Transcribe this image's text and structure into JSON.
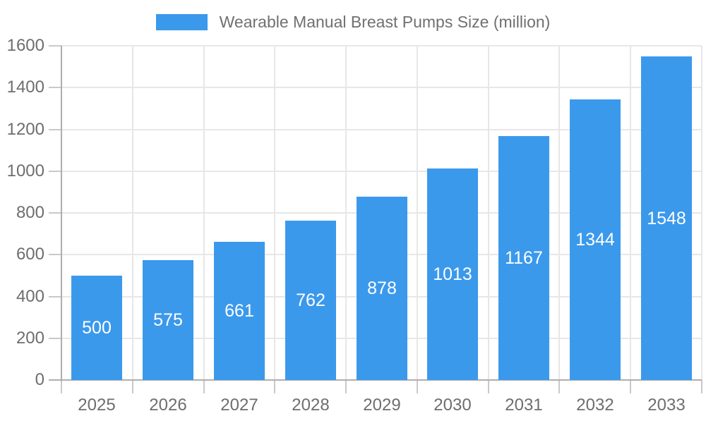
{
  "legend": {
    "label": "Wearable Manual Breast Pumps Size (million)"
  },
  "colors": {
    "bar": "#3B99EC",
    "grid": "#e7e7e7",
    "axis": "#aeaeae",
    "tick": "#c9c9c9",
    "axis_label": "#6e6e6e",
    "value_label": "#ffffff",
    "background": "#ffffff"
  },
  "chart_data": {
    "type": "bar",
    "title": "Wearable Manual Breast Pumps Size (million)",
    "categories": [
      "2025",
      "2026",
      "2027",
      "2028",
      "2029",
      "2030",
      "2031",
      "2032",
      "2033"
    ],
    "values": [
      500,
      575,
      661,
      762,
      878,
      1013,
      1167,
      1344,
      1548
    ],
    "xlabel": "",
    "ylabel": "",
    "ylim": [
      0,
      1600
    ],
    "ytick_step": 200,
    "ytick_labels": [
      "0",
      "200",
      "400",
      "600",
      "800",
      "1000",
      "1200",
      "1400",
      "1600"
    ],
    "grid": true,
    "legend_position": "top-center",
    "value_label_position": "inside-center"
  }
}
